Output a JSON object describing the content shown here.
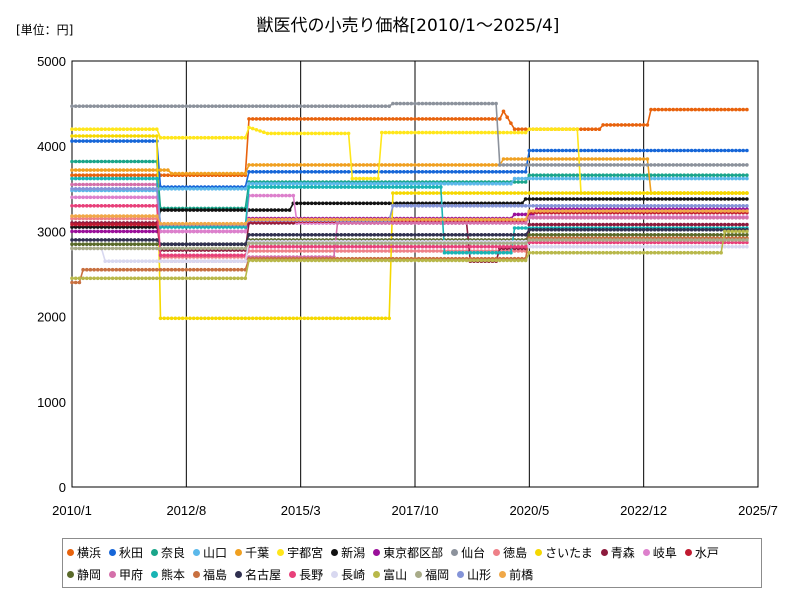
{
  "chart_data": {
    "type": "line",
    "title": "獣医代の小売り価格[2010/1～2025/4]",
    "unit_label": "[単位：円]",
    "xlabel": "",
    "ylabel": "",
    "ylim": [
      0,
      5000
    ],
    "y_ticks": [
      0,
      1000,
      2000,
      3000,
      4000,
      5000
    ],
    "xlim": [
      "2010/1",
      "2025/7"
    ],
    "x_ticks": [
      "2010/1",
      "2012/8",
      "2015/3",
      "2017/10",
      "2020/5",
      "2022/12",
      "2025/7"
    ],
    "grid": {
      "x": true,
      "y": false
    },
    "legend_position": "bottom",
    "series": [
      {
        "name": "横浜",
        "color": "#e8620c",
        "points": [
          [
            "2010/1",
            3660
          ],
          [
            "2013/12",
            3660
          ],
          [
            "2014/1",
            4320
          ],
          [
            "2019/9",
            4320
          ],
          [
            "2019/10",
            4410
          ],
          [
            "2020/1",
            4200
          ],
          [
            "2021/12",
            4200
          ],
          [
            "2022/1",
            4250
          ],
          [
            "2023/1",
            4250
          ],
          [
            "2023/2",
            4430
          ],
          [
            "2025/4",
            4430
          ]
        ]
      },
      {
        "name": "秋田",
        "color": "#1666d8",
        "points": [
          [
            "2010/1",
            4060
          ],
          [
            "2011/12",
            4060
          ],
          [
            "2012/1",
            3520
          ],
          [
            "2013/12",
            3520
          ],
          [
            "2014/1",
            3700
          ],
          [
            "2020/4",
            3700
          ],
          [
            "2020/5",
            3950
          ],
          [
            "2025/4",
            3950
          ]
        ]
      },
      {
        "name": "奈良",
        "color": "#1aa58a",
        "points": [
          [
            "2010/1",
            3820
          ],
          [
            "2011/12",
            3820
          ],
          [
            "2012/1",
            3270
          ],
          [
            "2013/12",
            3270
          ],
          [
            "2014/1",
            3580
          ],
          [
            "2020/4",
            3580
          ],
          [
            "2020/5",
            3660
          ],
          [
            "2025/4",
            3660
          ]
        ]
      },
      {
        "name": "山口",
        "color": "#5bb8ea",
        "points": [
          [
            "2010/1",
            3480
          ],
          [
            "2011/12",
            3480
          ],
          [
            "2012/1",
            3500
          ],
          [
            "2013/12",
            3500
          ],
          [
            "2014/1",
            3560
          ],
          [
            "2019/12",
            3560
          ],
          [
            "2020/1",
            3620
          ],
          [
            "2025/4",
            3620
          ]
        ]
      },
      {
        "name": "千葉",
        "color": "#f0a020",
        "points": [
          [
            "2010/1",
            3720
          ],
          [
            "2012/3",
            3720
          ],
          [
            "2012/4",
            3680
          ],
          [
            "2013/12",
            3680
          ],
          [
            "2014/1",
            3780
          ],
          [
            "2019/9",
            3780
          ],
          [
            "2019/10",
            3850
          ],
          [
            "2023/1",
            3850
          ],
          [
            "2023/2",
            3450
          ],
          [
            "2025/4",
            3450
          ]
        ]
      },
      {
        "name": "宇都宮",
        "color": "#ffe61a",
        "points": [
          [
            "2010/1",
            4200
          ],
          [
            "2011/12",
            4200
          ],
          [
            "2012/1",
            4100
          ],
          [
            "2013/12",
            4100
          ],
          [
            "2014/1",
            4220
          ],
          [
            "2014/6",
            4150
          ],
          [
            "2016/4",
            4150
          ],
          [
            "2016/5",
            3620
          ],
          [
            "2016/12",
            3620
          ],
          [
            "2017/1",
            4160
          ],
          [
            "2020/4",
            4160
          ],
          [
            "2020/5",
            4200
          ],
          [
            "2021/6",
            4200
          ],
          [
            "2021/7",
            3450
          ],
          [
            "2025/4",
            3450
          ]
        ]
      },
      {
        "name": "新潟",
        "color": "#111111",
        "points": [
          [
            "2010/1",
            3050
          ],
          [
            "2011/12",
            3050
          ],
          [
            "2012/1",
            3250
          ],
          [
            "2014/12",
            3250
          ],
          [
            "2015/1",
            3330
          ],
          [
            "2020/3",
            3330
          ],
          [
            "2020/4",
            3380
          ],
          [
            "2025/4",
            3380
          ]
        ]
      },
      {
        "name": "東京都区部",
        "color": "#9a0f9a",
        "points": [
          [
            "2010/1",
            3000
          ],
          [
            "2013/12",
            3000
          ],
          [
            "2014/1",
            3150
          ],
          [
            "2019/12",
            3150
          ],
          [
            "2020/1",
            3200
          ],
          [
            "2020/6",
            3200
          ],
          [
            "2020/7",
            3260
          ],
          [
            "2025/4",
            3260
          ]
        ]
      },
      {
        "name": "仙台",
        "color": "#8c929c",
        "points": [
          [
            "2010/1",
            4470
          ],
          [
            "2017/3",
            4470
          ],
          [
            "2017/4",
            4500
          ],
          [
            "2019/8",
            4500
          ],
          [
            "2019/9",
            3780
          ],
          [
            "2025/4",
            3780
          ]
        ]
      },
      {
        "name": "徳島",
        "color": "#ee8088",
        "points": [
          [
            "2010/1",
            3150
          ],
          [
            "2011/12",
            3150
          ],
          [
            "2012/1",
            2700
          ],
          [
            "2013/12",
            2700
          ],
          [
            "2014/1",
            2770
          ],
          [
            "2020/4",
            2770
          ],
          [
            "2020/5",
            2920
          ],
          [
            "2025/4",
            2920
          ]
        ]
      },
      {
        "name": "さいたま",
        "color": "#f5d800",
        "points": [
          [
            "2010/1",
            4120
          ],
          [
            "2011/12",
            4120
          ],
          [
            "2012/1",
            1980
          ],
          [
            "2017/3",
            1980
          ],
          [
            "2017/4",
            3450
          ],
          [
            "2025/4",
            3450
          ]
        ]
      },
      {
        "name": "青森",
        "color": "#8c1a3c",
        "points": [
          [
            "2010/1",
            3100
          ],
          [
            "2011/12",
            3100
          ],
          [
            "2012/1",
            2780
          ],
          [
            "2013/12",
            2780
          ],
          [
            "2014/1",
            3100
          ],
          [
            "2018/12",
            3100
          ],
          [
            "2019/1",
            2650
          ],
          [
            "2019/8",
            2650
          ],
          [
            "2019/9",
            2800
          ],
          [
            "2020/4",
            2800
          ],
          [
            "2020/5",
            3080
          ],
          [
            "2025/4",
            3080
          ]
        ]
      },
      {
        "name": "岐阜",
        "color": "#dd80cc",
        "points": [
          [
            "2010/1",
            3400
          ],
          [
            "2011/12",
            3400
          ],
          [
            "2012/1",
            3000
          ],
          [
            "2013/12",
            3000
          ],
          [
            "2014/1",
            3420
          ],
          [
            "2015/1",
            3420
          ],
          [
            "2015/2",
            3100
          ],
          [
            "2020/4",
            3100
          ],
          [
            "2020/5",
            3170
          ],
          [
            "2025/4",
            3170
          ]
        ]
      },
      {
        "name": "水戸",
        "color": "#c01a30",
        "points": [
          [
            "2010/1",
            3080
          ],
          [
            "2011/12",
            3080
          ],
          [
            "2012/1",
            3060
          ],
          [
            "2013/12",
            3060
          ],
          [
            "2014/1",
            3120
          ],
          [
            "2020/4",
            3120
          ],
          [
            "2020/5",
            3220
          ],
          [
            "2025/4",
            3220
          ]
        ]
      },
      {
        "name": "静岡",
        "color": "#5a6a2a",
        "points": [
          [
            "2010/1",
            2850
          ],
          [
            "2013/12",
            2850
          ],
          [
            "2014/1",
            2900
          ],
          [
            "2020/4",
            2900
          ],
          [
            "2020/5",
            2960
          ],
          [
            "2025/4",
            2960
          ]
        ]
      },
      {
        "name": "甲府",
        "color": "#d470aa",
        "points": [
          [
            "2010/1",
            3550
          ],
          [
            "2011/12",
            3550
          ],
          [
            "2012/1",
            2650
          ],
          [
            "2013/12",
            2650
          ],
          [
            "2014/1",
            2700
          ],
          [
            "2015/12",
            2700
          ],
          [
            "2016/1",
            3100
          ],
          [
            "2020/4",
            3100
          ],
          [
            "2020/5",
            3160
          ],
          [
            "2025/4",
            3160
          ]
        ]
      },
      {
        "name": "熊本",
        "color": "#18b4b4",
        "points": [
          [
            "2010/1",
            3620
          ],
          [
            "2011/12",
            3620
          ],
          [
            "2012/1",
            3050
          ],
          [
            "2013/12",
            3050
          ],
          [
            "2014/1",
            3520
          ],
          [
            "2018/5",
            3520
          ],
          [
            "2018/6",
            2750
          ],
          [
            "2019/12",
            2750
          ],
          [
            "2020/1",
            3040
          ],
          [
            "2025/4",
            3040
          ]
        ]
      },
      {
        "name": "福島",
        "color": "#c87040",
        "points": [
          [
            "2010/1",
            2400
          ],
          [
            "2010/3",
            2400
          ],
          [
            "2010/4",
            2550
          ],
          [
            "2013/12",
            2550
          ],
          [
            "2014/1",
            2680
          ],
          [
            "2020/4",
            2680
          ],
          [
            "2020/5",
            2920
          ],
          [
            "2025/4",
            2920
          ]
        ]
      },
      {
        "name": "名古屋",
        "color": "#303050",
        "points": [
          [
            "2010/1",
            2900
          ],
          [
            "2011/12",
            2900
          ],
          [
            "2012/1",
            2850
          ],
          [
            "2013/12",
            2850
          ],
          [
            "2014/1",
            2960
          ],
          [
            "2020/4",
            2960
          ],
          [
            "2020/5",
            3020
          ],
          [
            "2025/4",
            3020
          ]
        ]
      },
      {
        "name": "長野",
        "color": "#e8407a",
        "points": [
          [
            "2010/1",
            3300
          ],
          [
            "2011/12",
            3300
          ],
          [
            "2012/1",
            2720
          ],
          [
            "2013/12",
            2720
          ],
          [
            "2014/1",
            2820
          ],
          [
            "2020/4",
            2820
          ],
          [
            "2020/5",
            2870
          ],
          [
            "2025/4",
            2870
          ]
        ]
      },
      {
        "name": "長崎",
        "color": "#d8d8f0",
        "points": [
          [
            "2010/1",
            2800
          ],
          [
            "2010/9",
            2800
          ],
          [
            "2010/10",
            2650
          ],
          [
            "2013/12",
            2650
          ],
          [
            "2014/1",
            2880
          ],
          [
            "2020/4",
            2880
          ],
          [
            "2020/5",
            2820
          ],
          [
            "2025/4",
            2820
          ]
        ]
      },
      {
        "name": "富山",
        "color": "#b8b84a",
        "points": [
          [
            "2010/1",
            2450
          ],
          [
            "2013/12",
            2450
          ],
          [
            "2014/1",
            2660
          ],
          [
            "2020/4",
            2660
          ],
          [
            "2020/5",
            2750
          ],
          [
            "2024/9",
            2750
          ],
          [
            "2024/10",
            3000
          ],
          [
            "2025/4",
            3000
          ]
        ]
      },
      {
        "name": "福岡",
        "color": "#a8ab88",
        "points": [
          [
            "2010/1",
            2800
          ],
          [
            "2013/12",
            2800
          ],
          [
            "2014/1",
            2860
          ],
          [
            "2020/4",
            2860
          ],
          [
            "2020/5",
            2900
          ],
          [
            "2025/4",
            2900
          ]
        ]
      },
      {
        "name": "山形",
        "color": "#8494d8",
        "points": [
          [
            "2010/1",
            3500
          ],
          [
            "2011/12",
            3500
          ],
          [
            "2012/1",
            3080
          ],
          [
            "2013/12",
            3080
          ],
          [
            "2014/1",
            3130
          ],
          [
            "2017/3",
            3130
          ],
          [
            "2017/4",
            3300
          ],
          [
            "2025/4",
            3300
          ]
        ]
      },
      {
        "name": "前橋",
        "color": "#f0a848",
        "points": [
          [
            "2010/1",
            3180
          ],
          [
            "2011/12",
            3180
          ],
          [
            "2012/1",
            3090
          ],
          [
            "2013/12",
            3090
          ],
          [
            "2014/1",
            3140
          ],
          [
            "2020/4",
            3140
          ],
          [
            "2020/5",
            3240
          ],
          [
            "2025/4",
            3240
          ]
        ]
      }
    ]
  }
}
